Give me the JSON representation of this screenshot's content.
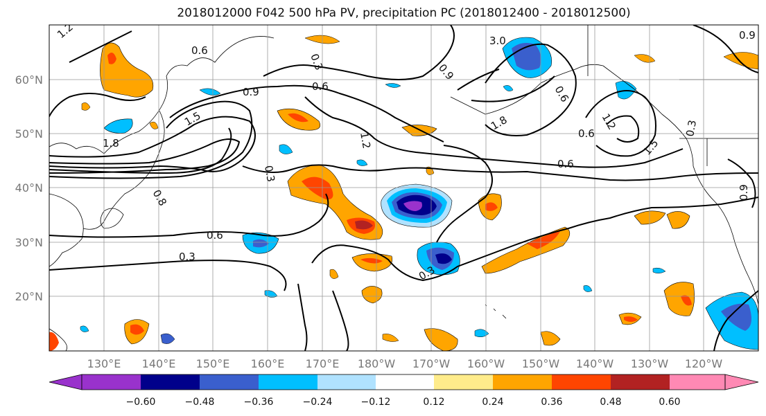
{
  "title": "2018012000 F042 500 hPa PV, precipitation PC (2018012400 - 2018012500)",
  "lat_labels": [
    "60°N",
    "50°N",
    "40°N",
    "30°N",
    "20°N"
  ],
  "lon_labels": [
    "130°E",
    "140°E",
    "150°E",
    "160°E",
    "170°E",
    "180°W",
    "170°W",
    "160°W",
    "150°W",
    "140°W",
    "130°W",
    "120°W"
  ],
  "colorbar": {
    "ticks": [
      "−0.60",
      "−0.48",
      "−0.36",
      "−0.24",
      "−0.12",
      "0.12",
      "0.24",
      "0.36",
      "0.48",
      "0.60"
    ],
    "colors": [
      "#9932cc",
      "#00008b",
      "#3a5fcd",
      "#00bfff",
      "#b0e2ff",
      "#ffffff",
      "#ffec8b",
      "#ffa500",
      "#ff4500",
      "#b22222",
      "#ff89b4"
    ]
  },
  "contour_labels": [
    "1.2",
    "0.6",
    "0.3",
    "0.9",
    "0.6",
    "1.5",
    "1.8",
    "0.3",
    "0.8",
    "1.2",
    "3.0",
    "0.9",
    "1.8",
    "0.6",
    "0.6",
    "1.2",
    "1.5",
    "0.3",
    "0.6",
    "0.3",
    "0.3",
    "0.9",
    "0.6",
    "0.9"
  ],
  "colors": {
    "axis": "#000000",
    "grid": "#999999",
    "contour": "#000000"
  }
}
